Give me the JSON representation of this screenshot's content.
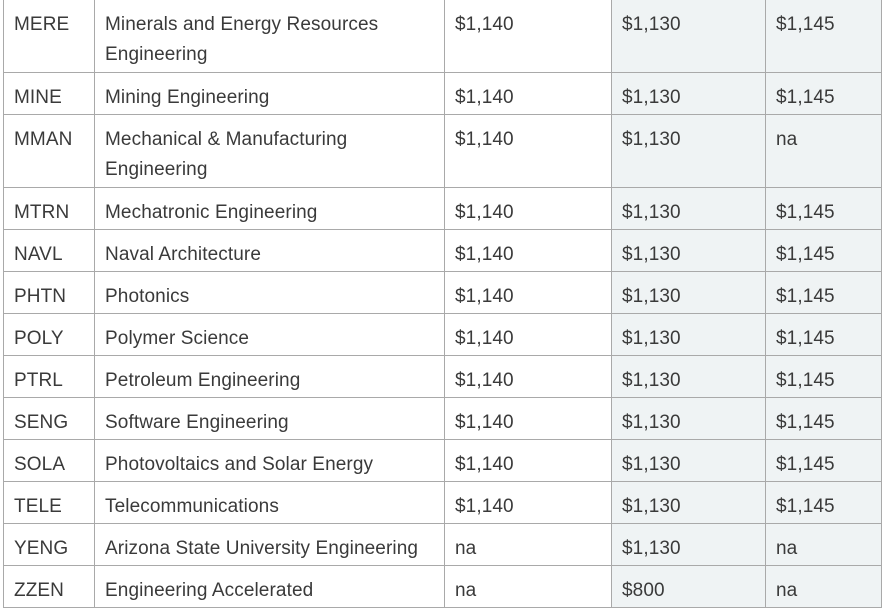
{
  "table": {
    "rows": [
      {
        "code": "MERE",
        "name": "Minerals and Energy Resources Engineering",
        "col3": "$1,140",
        "col4": "$1,130",
        "col5": "$1,145",
        "lines": 2
      },
      {
        "code": "MINE",
        "name": "Mining Engineering",
        "col3": "$1,140",
        "col4": "$1,130",
        "col5": "$1,145",
        "lines": 1
      },
      {
        "code": "MMAN",
        "name": "Mechanical & Manufacturing Engineering",
        "col3": "$1,140",
        "col4": "$1,130",
        "col5": "na",
        "lines": 2
      },
      {
        "code": "MTRN",
        "name": "Mechatronic Engineering",
        "col3": "$1,140",
        "col4": "$1,130",
        "col5": "$1,145",
        "lines": 1
      },
      {
        "code": "NAVL",
        "name": "Naval Architecture",
        "col3": "$1,140",
        "col4": "$1,130",
        "col5": "$1,145",
        "lines": 1
      },
      {
        "code": "PHTN",
        "name": "Photonics",
        "col3": "$1,140",
        "col4": "$1,130",
        "col5": "$1,145",
        "lines": 1
      },
      {
        "code": "POLY",
        "name": "Polymer Science",
        "col3": "$1,140",
        "col4": "$1,130",
        "col5": "$1,145",
        "lines": 1
      },
      {
        "code": "PTRL",
        "name": "Petroleum Engineering",
        "col3": "$1,140",
        "col4": "$1,130",
        "col5": "$1,145",
        "lines": 1
      },
      {
        "code": "SENG",
        "name": "Software Engineering",
        "col3": "$1,140",
        "col4": "$1,130",
        "col5": "$1,145",
        "lines": 1
      },
      {
        "code": "SOLA",
        "name": "Photovoltaics and Solar Energy",
        "col3": "$1,140",
        "col4": "$1,130",
        "col5": "$1,145",
        "lines": 1
      },
      {
        "code": "TELE",
        "name": "Telecommunications",
        "col3": "$1,140",
        "col4": "$1,130",
        "col5": "$1,145",
        "lines": 1
      },
      {
        "code": "YENG",
        "name": "Arizona State University Engineering",
        "col3": "na",
        "col4": "$1,130",
        "col5": "na",
        "lines": 1
      },
      {
        "code": "ZZEN",
        "name": "Engineering Accelerated",
        "col3": "na",
        "col4": "$800",
        "col5": "na",
        "lines": 1
      }
    ]
  }
}
